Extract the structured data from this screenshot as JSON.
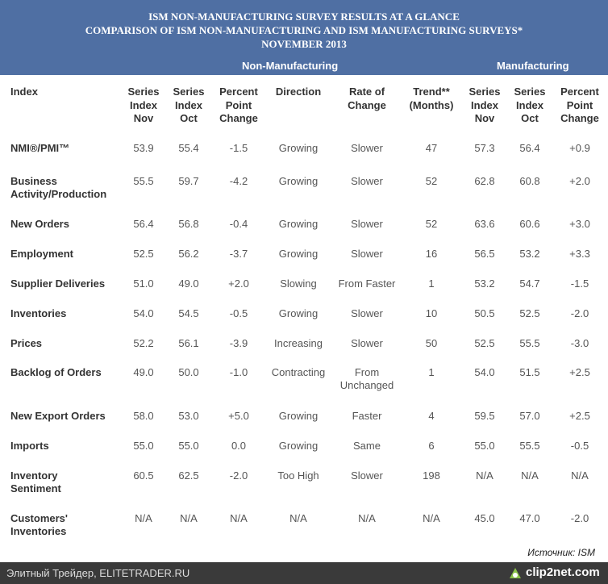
{
  "header": {
    "title_lines": [
      "ISM NON-MANUFACTURING SURVEY RESULTS AT A GLANCE",
      "COMPARISON OF ISM NON-MANUFACTURING AND ISM MANUFACTURING SURVEYS*",
      "NOVEMBER 2013"
    ],
    "groups": [
      "Non-Manufacturing",
      "Manufacturing"
    ]
  },
  "table": {
    "columns": [
      "Index",
      "Series Index Nov",
      "Series Index Oct",
      "Percent Point Change",
      "Direction",
      "Rate of Change",
      "Trend** (Months)",
      "Series Index Nov",
      "Series Index Oct",
      "Percent Point Change"
    ],
    "rows": [
      [
        "NMI®/PMI™",
        "53.9",
        "55.4",
        "-1.5",
        "Growing",
        "Slower",
        "47",
        "57.3",
        "56.4",
        "+0.9"
      ],
      [
        "Business Activity/Production",
        "55.5",
        "59.7",
        "-4.2",
        "Growing",
        "Slower",
        "52",
        "62.8",
        "60.8",
        "+2.0"
      ],
      [
        "New Orders",
        "56.4",
        "56.8",
        "-0.4",
        "Growing",
        "Slower",
        "52",
        "63.6",
        "60.6",
        "+3.0"
      ],
      [
        "Employment",
        "52.5",
        "56.2",
        "-3.7",
        "Growing",
        "Slower",
        "16",
        "56.5",
        "53.2",
        "+3.3"
      ],
      [
        "Supplier Deliveries",
        "51.0",
        "49.0",
        "+2.0",
        "Slowing",
        "From Faster",
        "1",
        "53.2",
        "54.7",
        "-1.5"
      ],
      [
        "Inventories",
        "54.0",
        "54.5",
        "-0.5",
        "Growing",
        "Slower",
        "10",
        "50.5",
        "52.5",
        "-2.0"
      ],
      [
        "Prices",
        "52.2",
        "56.1",
        "-3.9",
        "Increasing",
        "Slower",
        "50",
        "52.5",
        "55.5",
        "-3.0"
      ],
      [
        "Backlog of Orders",
        "49.0",
        "50.0",
        "-1.0",
        "Contracting",
        "From Unchanged",
        "1",
        "54.0",
        "51.5",
        "+2.5"
      ],
      [
        "New Export Orders",
        "58.0",
        "53.0",
        "+5.0",
        "Growing",
        "Faster",
        "4",
        "59.5",
        "57.0",
        "+2.5"
      ],
      [
        "Imports",
        "55.0",
        "55.0",
        "0.0",
        "Growing",
        "Same",
        "6",
        "55.0",
        "55.5",
        "-0.5"
      ],
      [
        "Inventory Sentiment",
        "60.5",
        "62.5",
        "-2.0",
        "Too High",
        "Slower",
        "198",
        "N/A",
        "N/A",
        "N/A"
      ],
      [
        "Customers' Inventories",
        "N/A",
        "N/A",
        "N/A",
        "N/A",
        "N/A",
        "N/A",
        "45.0",
        "47.0",
        "-2.0"
      ]
    ]
  },
  "source": "Источник: ISM",
  "footer": {
    "site": "Элитный Трейдер, ELITETRADER.RU",
    "logo": "clip2net.com"
  }
}
